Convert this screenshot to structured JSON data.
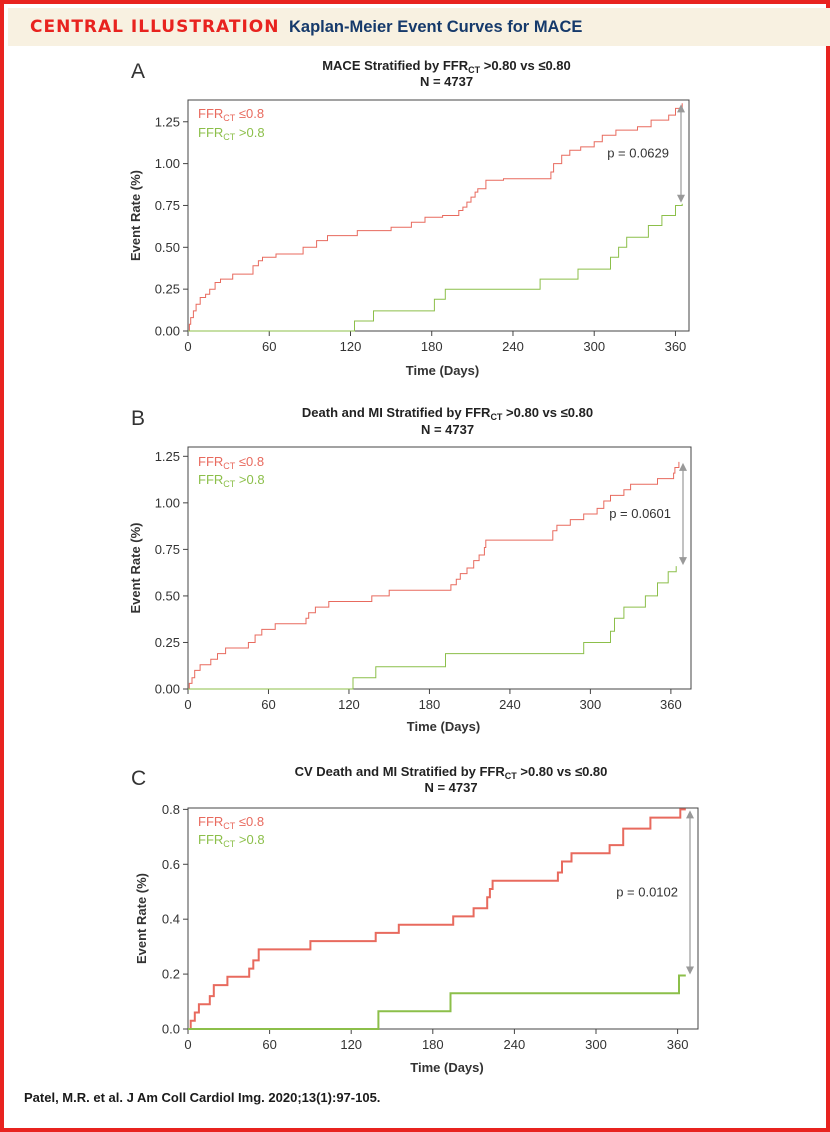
{
  "header": {
    "label": "CENTRAL ILLUSTRATION",
    "title": "Kaplan-Meier Event Curves for MACE"
  },
  "citation": "Patel, M.R. et al. J Am Coll Cardiol Img. 2020;13(1):97-105.",
  "colors": {
    "frame": "#e8231f",
    "series_le": "#e86a5e",
    "series_gt": "#8cbf4a",
    "pvalue_arrow": "#999999"
  },
  "chart_data": [
    {
      "type": "line",
      "panel_letter": "A",
      "title_pre": "MACE Stratified by FFR",
      "title_sub": "CT",
      "title_post": " >0.80 vs ≤0.80",
      "n_label": "N = 4737",
      "xlabel": "Time (Days)",
      "ylabel": "Event Rate (%)",
      "xlim": [
        0,
        370
      ],
      "ylim": [
        0,
        1.38
      ],
      "xticks": [
        0,
        60,
        120,
        180,
        240,
        300,
        360
      ],
      "xtick_labels": [
        "0",
        "60",
        "120",
        "180",
        "240",
        "300",
        "360"
      ],
      "yticks": [
        0,
        0.25,
        0.5,
        0.75,
        1.0,
        1.25
      ],
      "ytick_labels": [
        "0.00",
        "0.25",
        "0.50",
        "0.75",
        "1.00",
        "1.25"
      ],
      "p_value": "p = 0.0629",
      "legend_position": "top-left",
      "grid": false,
      "stroke_width": 1,
      "series": [
        {
          "legend_main": "FFR",
          "legend_sub": "CT",
          "legend_tail": " ≤0.8",
          "color": "#e86a5e",
          "points": [
            [
              0,
              0
            ],
            [
              1,
              0.04
            ],
            [
              2,
              0.08
            ],
            [
              4,
              0.12
            ],
            [
              6,
              0.16
            ],
            [
              9,
              0.2
            ],
            [
              13,
              0.22
            ],
            [
              16,
              0.25
            ],
            [
              20,
              0.29
            ],
            [
              24,
              0.31
            ],
            [
              33,
              0.34
            ],
            [
              48,
              0.39
            ],
            [
              52,
              0.42
            ],
            [
              55,
              0.44
            ],
            [
              65,
              0.46
            ],
            [
              85,
              0.5
            ],
            [
              95,
              0.54
            ],
            [
              103,
              0.57
            ],
            [
              125,
              0.6
            ],
            [
              150,
              0.62
            ],
            [
              165,
              0.65
            ],
            [
              175,
              0.68
            ],
            [
              188,
              0.69
            ],
            [
              200,
              0.72
            ],
            [
              203,
              0.74
            ],
            [
              206,
              0.77
            ],
            [
              209,
              0.8
            ],
            [
              212,
              0.83
            ],
            [
              214,
              0.85
            ],
            [
              220,
              0.9
            ],
            [
              233,
              0.91
            ],
            [
              268,
              0.95
            ],
            [
              270,
              1.0
            ],
            [
              276,
              1.05
            ],
            [
              282,
              1.08
            ],
            [
              290,
              1.1
            ],
            [
              300,
              1.13
            ],
            [
              306,
              1.17
            ],
            [
              316,
              1.2
            ],
            [
              332,
              1.22
            ],
            [
              342,
              1.26
            ],
            [
              355,
              1.29
            ],
            [
              360,
              1.33
            ],
            [
              365,
              1.36
            ]
          ]
        },
        {
          "legend_main": "FFR",
          "legend_sub": "CT",
          "legend_tail": " >0.8",
          "color": "#8cbf4a",
          "points": [
            [
              0,
              0
            ],
            [
              122,
              0
            ],
            [
              123,
              0.06
            ],
            [
              137,
              0.12
            ],
            [
              182,
              0.19
            ],
            [
              190,
              0.25
            ],
            [
              260,
              0.31
            ],
            [
              288,
              0.37
            ],
            [
              312,
              0.44
            ],
            [
              318,
              0.5
            ],
            [
              324,
              0.56
            ],
            [
              340,
              0.63
            ],
            [
              350,
              0.69
            ],
            [
              360,
              0.75
            ],
            [
              365,
              0.76
            ]
          ]
        }
      ]
    },
    {
      "type": "line",
      "panel_letter": "B",
      "title_pre": "Death and MI Stratified by FFR",
      "title_sub": "CT",
      "title_post": " >0.80 vs ≤0.80",
      "n_label": "N = 4737",
      "xlabel": "Time (Days)",
      "ylabel": "Event Rate (%)",
      "xlim": [
        0,
        375
      ],
      "ylim": [
        0,
        1.3
      ],
      "xticks": [
        0,
        60,
        120,
        180,
        240,
        300,
        360
      ],
      "xtick_labels": [
        "0",
        "60",
        "120",
        "180",
        "240",
        "300",
        "360"
      ],
      "yticks": [
        0,
        0.25,
        0.5,
        0.75,
        1.0,
        1.25
      ],
      "ytick_labels": [
        "0.00",
        "0.25",
        "0.50",
        "0.75",
        "1.00",
        "1.25"
      ],
      "p_value": "p = 0.0601",
      "legend_position": "top-left",
      "grid": false,
      "stroke_width": 1,
      "series": [
        {
          "legend_main": "FFR",
          "legend_sub": "CT",
          "legend_tail": " ≤0.8",
          "color": "#e86a5e",
          "points": [
            [
              0,
              0
            ],
            [
              1,
              0.03
            ],
            [
              3,
              0.06
            ],
            [
              5,
              0.1
            ],
            [
              9,
              0.13
            ],
            [
              17,
              0.16
            ],
            [
              22,
              0.19
            ],
            [
              28,
              0.22
            ],
            [
              45,
              0.25
            ],
            [
              50,
              0.29
            ],
            [
              55,
              0.32
            ],
            [
              65,
              0.35
            ],
            [
              88,
              0.38
            ],
            [
              90,
              0.41
            ],
            [
              95,
              0.44
            ],
            [
              105,
              0.47
            ],
            [
              137,
              0.5
            ],
            [
              150,
              0.53
            ],
            [
              196,
              0.56
            ],
            [
              200,
              0.59
            ],
            [
              203,
              0.62
            ],
            [
              208,
              0.65
            ],
            [
              213,
              0.69
            ],
            [
              217,
              0.72
            ],
            [
              221,
              0.76
            ],
            [
              222,
              0.8
            ],
            [
              272,
              0.85
            ],
            [
              275,
              0.88
            ],
            [
              285,
              0.91
            ],
            [
              295,
              0.94
            ],
            [
              305,
              0.97
            ],
            [
              310,
              1.01
            ],
            [
              315,
              1.04
            ],
            [
              325,
              1.07
            ],
            [
              330,
              1.1
            ],
            [
              350,
              1.13
            ],
            [
              362,
              1.16
            ],
            [
              363,
              1.19
            ],
            [
              366,
              1.22
            ]
          ]
        },
        {
          "legend_main": "FFR",
          "legend_sub": "CT",
          "legend_tail": " >0.8",
          "color": "#8cbf4a",
          "points": [
            [
              0,
              0
            ],
            [
              122,
              0
            ],
            [
              123,
              0.06
            ],
            [
              140,
              0.12
            ],
            [
              192,
              0.19
            ],
            [
              295,
              0.25
            ],
            [
              315,
              0.31
            ],
            [
              318,
              0.38
            ],
            [
              325,
              0.44
            ],
            [
              341,
              0.5
            ],
            [
              350,
              0.57
            ],
            [
              358,
              0.63
            ],
            [
              364,
              0.66
            ]
          ]
        }
      ]
    },
    {
      "type": "line",
      "panel_letter": "C",
      "title_pre": "CV Death and MI Stratified by FFR",
      "title_sub": "CT",
      "title_post": " >0.80 vs ≤0.80",
      "n_label": "N = 4737",
      "xlabel": "Time (Days)",
      "ylabel": "Event Rate (%)",
      "xlim": [
        0,
        375
      ],
      "ylim": [
        0,
        0.805
      ],
      "xticks": [
        0,
        60,
        120,
        180,
        240,
        300,
        360
      ],
      "xtick_labels": [
        "0",
        "60",
        "120",
        "180",
        "240",
        "300",
        "360"
      ],
      "yticks": [
        0,
        0.2,
        0.4,
        0.6,
        0.8
      ],
      "ytick_labels": [
        "0.0",
        "0.2",
        "0.4",
        "0.6",
        "0.8"
      ],
      "p_value": "p = 0.0102",
      "legend_position": "top-left",
      "grid": false,
      "stroke_width": 2,
      "series": [
        {
          "legend_main": "FFR",
          "legend_sub": "CT",
          "legend_tail": " ≤0.8",
          "color": "#e86a5e",
          "points": [
            [
              0,
              0
            ],
            [
              2,
              0.03
            ],
            [
              5,
              0.06
            ],
            [
              8,
              0.09
            ],
            [
              16,
              0.12
            ],
            [
              19,
              0.16
            ],
            [
              29,
              0.19
            ],
            [
              45,
              0.22
            ],
            [
              48,
              0.25
            ],
            [
              52,
              0.29
            ],
            [
              90,
              0.32
            ],
            [
              138,
              0.35
            ],
            [
              155,
              0.38
            ],
            [
              195,
              0.41
            ],
            [
              210,
              0.44
            ],
            [
              220,
              0.48
            ],
            [
              222,
              0.51
            ],
            [
              224,
              0.54
            ],
            [
              272,
              0.57
            ],
            [
              275,
              0.61
            ],
            [
              282,
              0.64
            ],
            [
              310,
              0.67
            ],
            [
              320,
              0.73
            ],
            [
              340,
              0.77
            ],
            [
              362,
              0.8
            ],
            [
              366,
              0.8
            ]
          ]
        },
        {
          "legend_main": "FFR",
          "legend_sub": "CT",
          "legend_tail": " >0.8",
          "color": "#8cbf4a",
          "points": [
            [
              0,
              0
            ],
            [
              139,
              0
            ],
            [
              140,
              0.065
            ],
            [
              193,
              0.13
            ],
            [
              360,
              0.13
            ],
            [
              361,
              0.195
            ],
            [
              366,
              0.195
            ]
          ]
        }
      ]
    }
  ]
}
